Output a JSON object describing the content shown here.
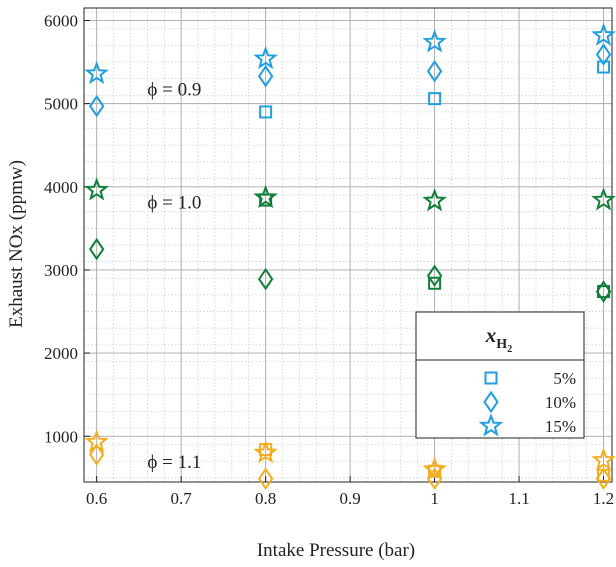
{
  "chart_data": {
    "type": "scatter",
    "xlabel": "Intake Pressure (bar)",
    "ylabel": "Exhaust NOx (ppmw)",
    "xlim": [
      0.585,
      1.21
    ],
    "ylim": [
      450,
      6150
    ],
    "xticks": [
      0.6,
      0.7,
      0.8,
      0.9,
      1.0,
      1.1,
      1.2
    ],
    "xtick_labels": [
      "0.6",
      "0.7",
      "0.8",
      "0.9",
      "1",
      "1.1",
      "1.2"
    ],
    "yticks": [
      1000,
      2000,
      3000,
      4000,
      5000,
      6000
    ],
    "ytick_labels": [
      "1000",
      "2000",
      "3000",
      "4000",
      "5000",
      "6000"
    ],
    "grid": true,
    "minor_grid": true,
    "legend": {
      "title_main": "x",
      "title_sub": "H",
      "title_subsub": "2",
      "placement": "lower-right",
      "entries": [
        {
          "label": "5%",
          "marker": "square"
        },
        {
          "label": "10%",
          "marker": "diamond"
        },
        {
          "label": "15%",
          "marker": "star"
        }
      ]
    },
    "annotations": [
      {
        "text": "ϕ = 0.9",
        "x": 0.66,
        "y": 5100
      },
      {
        "text": "ϕ = 1.0",
        "x": 0.66,
        "y": 3740
      },
      {
        "text": "ϕ = 1.1",
        "x": 0.66,
        "y": 620
      }
    ],
    "groups": [
      {
        "phi": "0.9",
        "color": "#1f9fe0",
        "series": [
          {
            "marker": "square",
            "x": [
              0.8,
              1.0,
              1.2
            ],
            "y": [
              4900,
              5060,
              5440
            ]
          },
          {
            "marker": "diamond",
            "x": [
              0.6,
              0.8,
              1.0,
              1.2
            ],
            "y": [
              4970,
              5330,
              5390,
              5590
            ]
          },
          {
            "marker": "star",
            "x": [
              0.6,
              0.8,
              1.0,
              1.2
            ],
            "y": [
              5360,
              5540,
              5740,
              5820
            ]
          }
        ]
      },
      {
        "phi": "1.0",
        "color": "#0f7f3a",
        "series": [
          {
            "marker": "square",
            "x": [
              0.8,
              1.0,
              1.2
            ],
            "y": [
              3840,
              2840,
              2740
            ]
          },
          {
            "marker": "diamond",
            "x": [
              0.6,
              0.8,
              1.0,
              1.2
            ],
            "y": [
              3250,
              2890,
              2930,
              2740
            ]
          },
          {
            "marker": "star",
            "x": [
              0.6,
              0.8,
              1.0,
              1.2
            ],
            "y": [
              3960,
              3870,
              3830,
              3840
            ]
          }
        ]
      },
      {
        "phi": "1.1",
        "color": "#f5ad1f",
        "series": [
          {
            "marker": "square",
            "x": [
              0.8,
              1.0,
              1.2
            ],
            "y": [
              840,
              580,
              530
            ]
          },
          {
            "marker": "diamond",
            "x": [
              0.6,
              0.8,
              1.0,
              1.2
            ],
            "y": [
              780,
              490,
              490,
              490
            ]
          },
          {
            "marker": "star",
            "x": [
              0.6,
              0.8,
              1.0,
              1.2
            ],
            "y": [
              930,
              800,
              600,
              710
            ]
          }
        ]
      }
    ]
  }
}
